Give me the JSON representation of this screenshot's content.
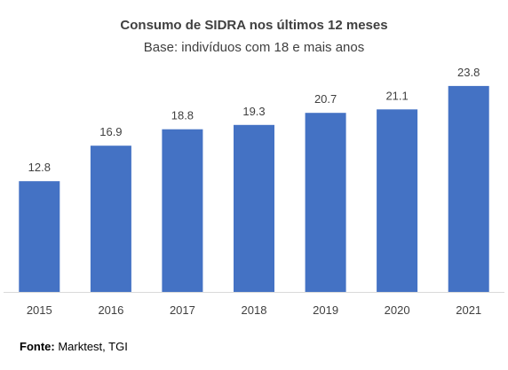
{
  "chart_data": {
    "type": "bar",
    "title": "Consumo de SIDRA nos últimos 12 meses",
    "subtitle": "Base: indivíduos com 18 e mais anos",
    "categories": [
      "2015",
      "2016",
      "2017",
      "2018",
      "2019",
      "2020",
      "2021"
    ],
    "values": [
      12.8,
      16.9,
      18.8,
      19.3,
      20.7,
      21.1,
      23.8
    ],
    "data_labels": [
      "12.8",
      "16.9",
      "18.8",
      "19.3",
      "20.7",
      "21.1",
      "23.8"
    ],
    "xlabel": "",
    "ylabel": "",
    "ylim": [
      0,
      24
    ],
    "grid": false,
    "legend": "none",
    "bar_color": "#4472C4",
    "axis_line_color": "#D9D9D9"
  },
  "source": {
    "label": "Fonte:",
    "text": " Marktest, TGI"
  }
}
